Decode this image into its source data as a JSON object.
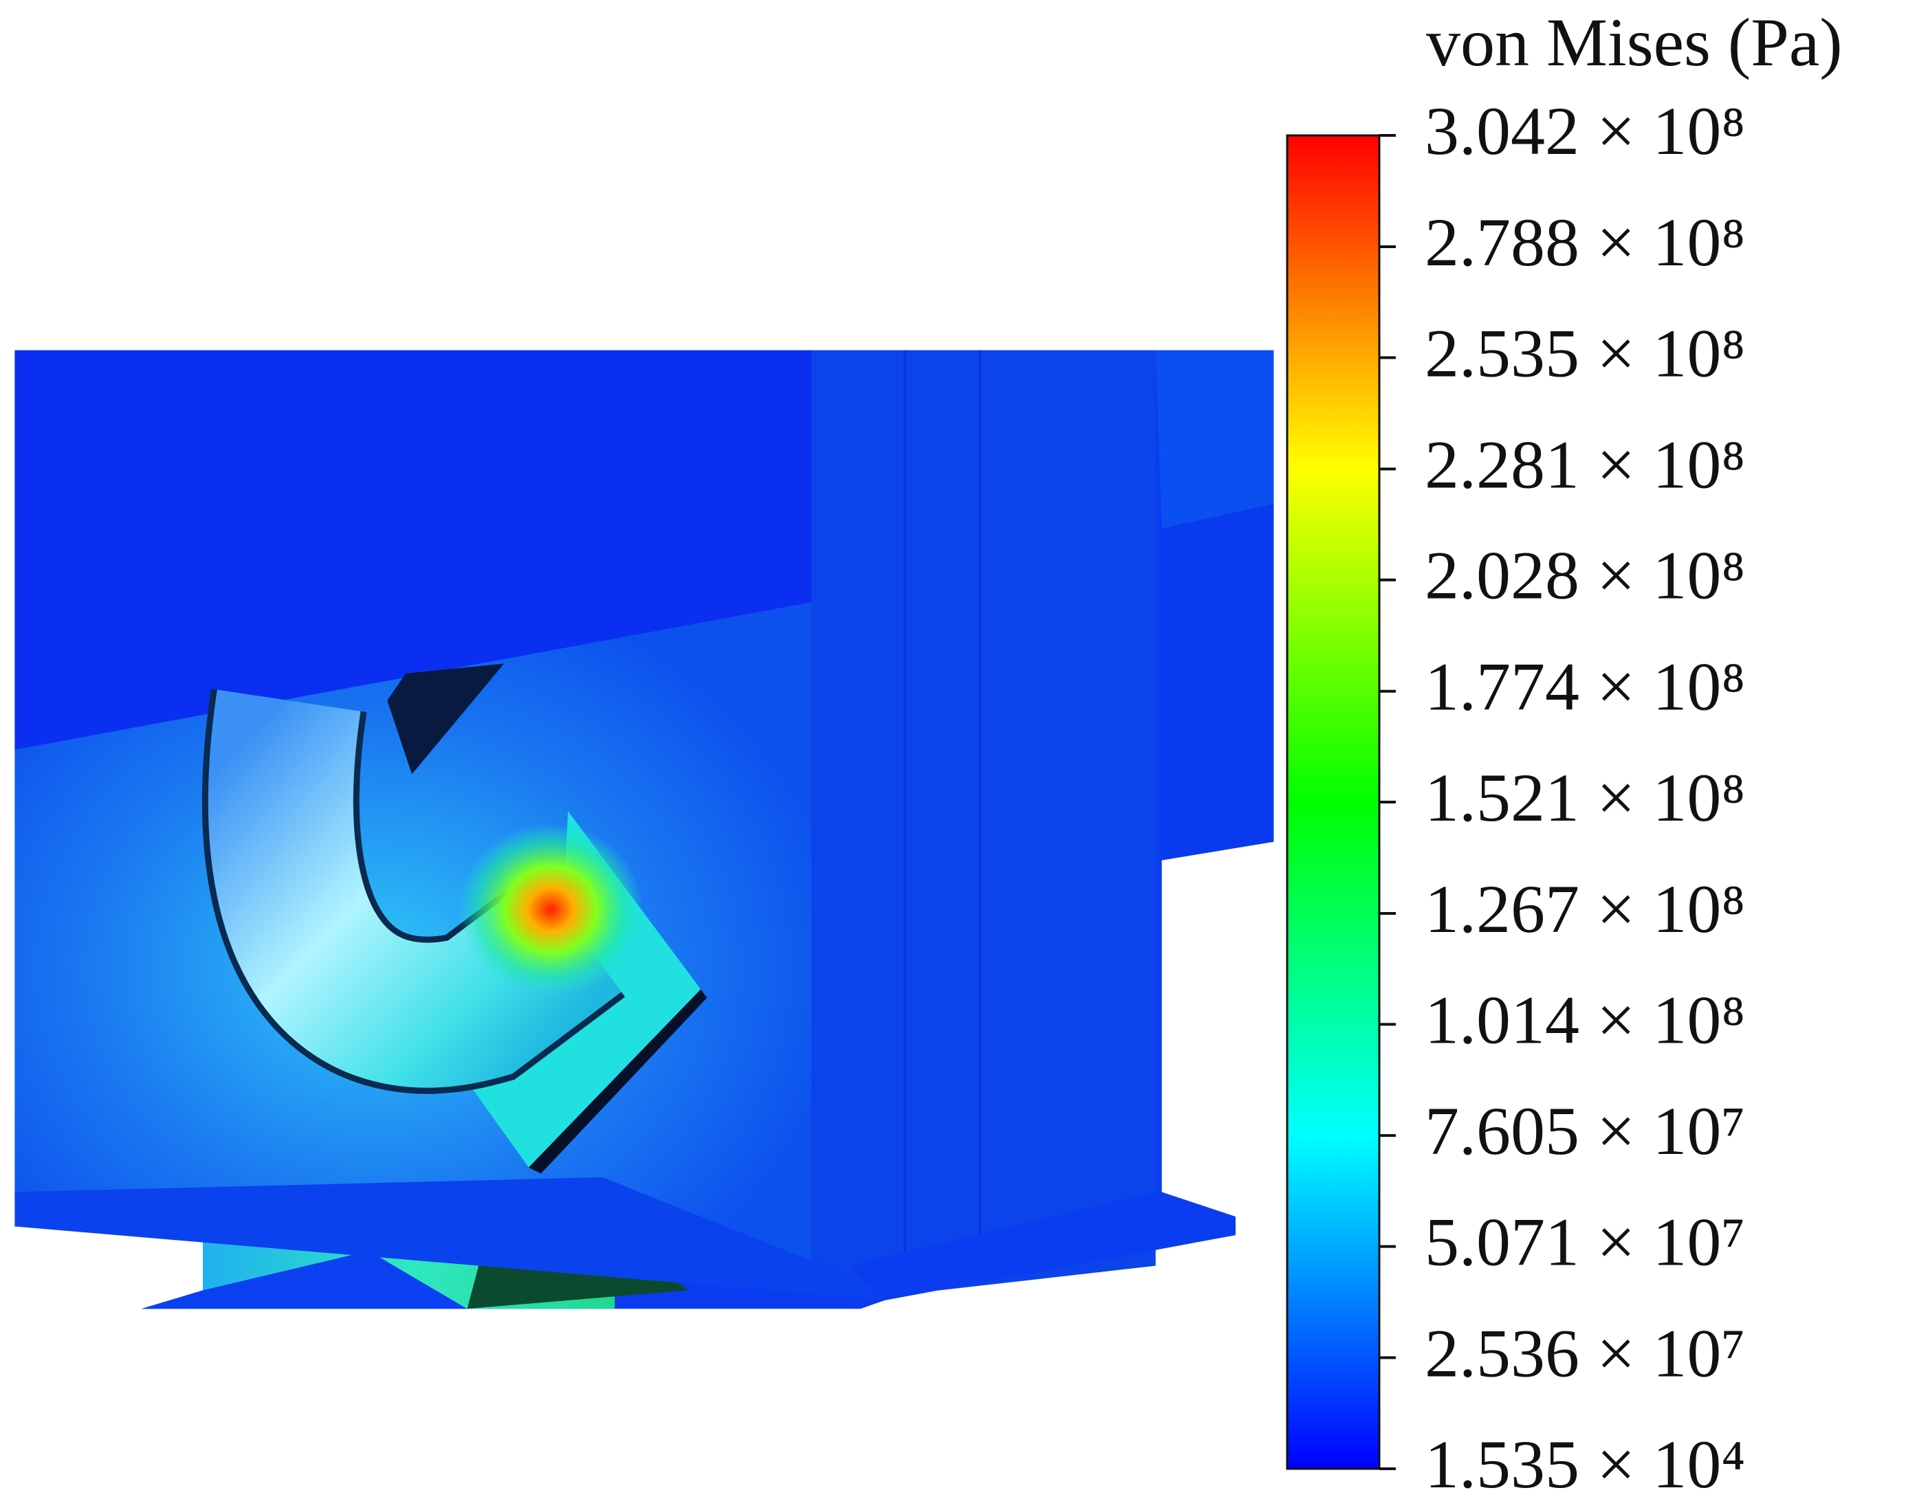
{
  "chart_data": {
    "type": "colorbar",
    "colorbar_label": "von Mises (Pa)",
    "clim": [
      15350,
      304200000
    ],
    "colormap": [
      "#0000ff",
      "#0080ff",
      "#00ffff",
      "#00ff80",
      "#00ff00",
      "#80ff00",
      "#ffff00",
      "#ff8000",
      "#ff0000"
    ],
    "cticks": [
      {
        "value": 304200000,
        "label": "3.042 × 10⁸"
      },
      {
        "value": 278800000,
        "label": "2.788 × 10⁸"
      },
      {
        "value": 253500000,
        "label": "2.535 × 10⁸"
      },
      {
        "value": 228100000,
        "label": "2.281 × 10⁸"
      },
      {
        "value": 202800000,
        "label": "2.028 × 10⁸"
      },
      {
        "value": 177400000,
        "label": "1.774 × 10⁸"
      },
      {
        "value": 152100000,
        "label": "1.521 × 10⁸"
      },
      {
        "value": 126700000,
        "label": "1.267 × 10⁸"
      },
      {
        "value": 101400000,
        "label": "1.014 × 10⁸"
      },
      {
        "value": 76050000,
        "label": "7.605 × 10⁷"
      },
      {
        "value": 50710000,
        "label": "5.071 × 10⁷"
      },
      {
        "value": 25360000,
        "label": "2.536 × 10⁷"
      },
      {
        "value": 15350,
        "label": "1.535 × 10⁴"
      }
    ]
  }
}
